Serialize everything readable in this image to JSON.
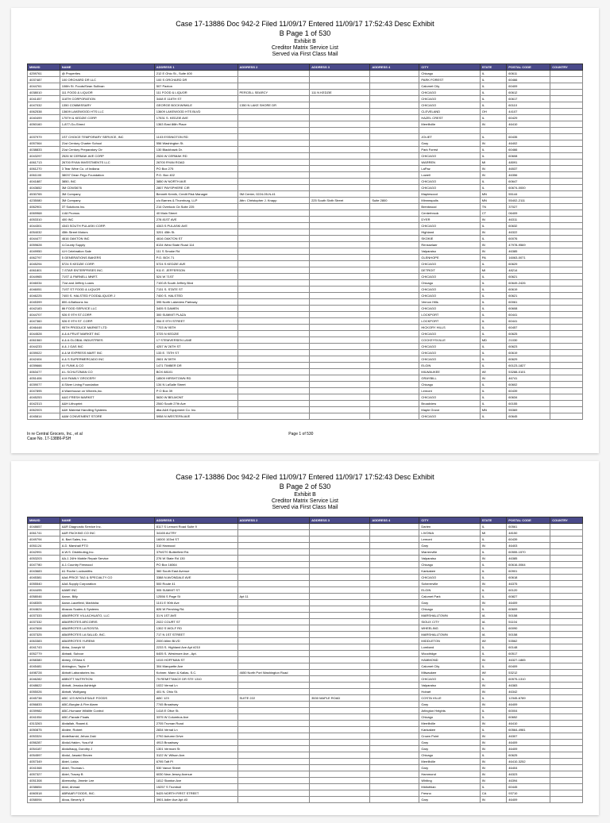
{
  "case_header": "Case 17-13886   Doc 942-2   Filed 11/09/17   Entered 11/09/17 17:52:43   Desc Exhibit",
  "page1_line": "B   Page 1 of 530",
  "page2_line": "B   Page 2 of 530",
  "exhibit_label": "Exhibit B",
  "subtitle1": "Creditor Matrix Service List",
  "subtitle2": "Served via First Class Mail",
  "columns": [
    "MMUID",
    "NAME",
    "ADDRESS 1",
    "ADDRESS 2",
    "ADDRESS 3",
    "ADDRESS 4",
    "CITY",
    "STATE",
    "POSTAL CODE",
    "COUNTRY"
  ],
  "footer_left1": "In re Central Grocers, Inc., et al",
  "footer_left2": "Case No. 17-13886-PSH",
  "footer_center": "Page 1 of 530",
  "rows1": [
    [
      "4259761",
      "@ Properties",
      "212 E Ohio St., Suite 400",
      "",
      "",
      "",
      "Chicago",
      "IL",
      "60611",
      ""
    ],
    [
      "4037487",
      "100 ORCHARD DR LLC",
      "100 S ORCHARD DR",
      "",
      "",
      "",
      "PARK FOREST",
      "IL",
      "60466",
      ""
    ],
    [
      "4044761",
      "106th St. Foods/Sean Sullivan",
      "507 Paxton",
      "",
      "",
      "",
      "Calumet City",
      "IL",
      "60409",
      ""
    ],
    [
      "4038010",
      "111 FOOD & LIQUOR",
      "111 FOOD & LIQUOR",
      "PERCELL SEARCY",
      "111 N KEDZIE",
      "",
      "CHICAGO",
      "IL",
      "60612",
      ""
    ],
    [
      "4041457",
      "118TH CORPORATION",
      "3448 E 118TH ST",
      "",
      "",
      "",
      "CHICAGO",
      "IL",
      "60617",
      ""
    ],
    [
      "4047032",
      "1350 COMMISSARY",
      "GEORGE BOCKWINKLE",
      "1350 N LAKE SHORE DR",
      "",
      "",
      "CHICAGO",
      "IL",
      "60110",
      ""
    ],
    [
      "4062538",
      "13609 LAKEWOOD HTS LLC",
      "13609 LAKEWOOD HTS BLVD",
      "",
      "",
      "",
      "CLEVELAND",
      "OH",
      "44107",
      ""
    ],
    [
      "4040499",
      "175TH & KEDZIE CORP.",
      "17531 S. KEDZIE AVE",
      "",
      "",
      "",
      "HAZEL CREST",
      "IL",
      "60429",
      ""
    ],
    [
      "4050160",
      "1-877-Go-Shred",
      "1363 East 86th Place",
      "",
      "",
      "",
      "Merrillville",
      "IN",
      "46410",
      ""
    ],
    [
      "",
      "",
      "",
      "",
      "",
      "",
      "",
      "",
      "",
      ""
    ],
    [
      "4037979",
      "1ST CHOICE TEMPORARY SERVICE, INC",
      "1103 ESSINGTON RD",
      "",
      "",
      "",
      "JOLIET",
      "IL",
      "60435",
      ""
    ],
    [
      "4057064",
      "21st Century Charter School",
      "556 Washington St.",
      "",
      "",
      "",
      "Gary",
      "IN",
      "46402",
      ""
    ],
    [
      "4038833",
      "21st Century Preparatory Ctr",
      "130 Blackhawk Dr.",
      "",
      "",
      "",
      "Park Forest",
      "IL",
      "60466",
      ""
    ],
    [
      "4043297",
      "2526 W CERMAK AVE CORP",
      "2526 W CERMAK RD",
      "",
      "",
      "",
      "CHICAGO",
      "IL",
      "60608",
      ""
    ],
    [
      "4061713",
      "26700 RYAN INVESTMENTS LLC",
      "26700 RYAN ROAD",
      "",
      "",
      "",
      "WARREN",
      "MI",
      "48091",
      ""
    ],
    [
      "4061270",
      "3 Tear Wine Co. of Indiana",
      "PO Box 275",
      "",
      "",
      "",
      "LaPaz",
      "IN",
      "46537",
      ""
    ],
    [
      "4061100",
      "38037 Dean Frigo Foundation",
      "P.O. Box 402",
      "",
      "",
      "",
      "Lowell",
      "IN",
      "46356",
      ""
    ],
    [
      "4041887",
      "3850, INC",
      "3850 W NORTH AVE",
      "",
      "",
      "",
      "CHICAGO",
      "IL",
      "60647",
      ""
    ],
    [
      "4043652",
      "3M CDW3676",
      "2807 PAYSPHERE CIR",
      "",
      "",
      "",
      "CHICAGO",
      "IL",
      "60674-0000",
      ""
    ],
    [
      "4530765",
      "3M Company",
      "Bennett Krenlk, Credit Risk Manager",
      "3M Center, 0224-05-N-41",
      "",
      "",
      "Maplewood",
      "MN",
      "55144",
      ""
    ],
    [
      "4235080",
      "3M Company",
      "c/o Barnes & Thornburg, LLP",
      "Attn: Christopher J. Knapp",
      "225 South Sixth Street",
      "Suite 2800",
      "Minneapolis",
      "MN",
      "55402-2111",
      ""
    ],
    [
      "4062901",
      "3T Solutions Inc.",
      "214 Overlook Cir.Suite 225",
      "",
      "",
      "",
      "Brentwood",
      "TN",
      "37027",
      ""
    ],
    [
      "4069968",
      "4 All Promos",
      "40 Main Street",
      "",
      "",
      "",
      "Centerbrook",
      "CT",
      "06409",
      ""
    ],
    [
      "4053310",
      "400 INC",
      "278 81ST AVE",
      "",
      "",
      "",
      "DYER",
      "IN",
      "46311",
      ""
    ],
    [
      "4044301",
      "4343 SOUTH PULASKI CORP.",
      "4343 S PULASKI AVE",
      "",
      "",
      "",
      "CHICAGO",
      "IL",
      "60632",
      ""
    ],
    [
      "4054032",
      "45th Street Motors",
      "3201 45th St.",
      "",
      "",
      "",
      "Highland",
      "IN",
      "46322",
      ""
    ],
    [
      "4044477",
      "4616 OAKTON INC",
      "4616 OAKTON ST",
      "",
      "",
      "",
      "SKOKIE",
      "IL",
      "60076",
      ""
    ],
    [
      "4059628",
      "4-County Supply",
      "8134 West State Road 114",
      "",
      "",
      "",
      "Rensselaer",
      "IN",
      "47978-9569",
      ""
    ],
    [
      "4049950",
      "4-H Celebration Sale",
      "111 S Smoke Rd",
      "",
      "",
      "",
      "Valparaiso",
      "IN",
      "46385",
      ""
    ],
    [
      "4062797",
      "5 GENERATIONS BAKERS",
      "P.O. BOX 71",
      "",
      "",
      "",
      "GLENHOPE",
      "PA",
      "16063-0071",
      ""
    ],
    [
      "4045294",
      "5724 S KEDZIE CORP.",
      "5724 S KEDZIE AVE",
      "",
      "",
      "",
      "CHICAGO",
      "IL",
      "60629",
      ""
    ],
    [
      "4061801",
      "7-STAR ENTERPRISES INC.",
      "911 E. JEFFERSON",
      "",
      "",
      "",
      "DETROIT",
      "MI",
      "48214",
      ""
    ],
    [
      "4044965",
      "71ST & PARNELL MNRT.",
      "524 W 71ST",
      "",
      "",
      "",
      "CHICAGO",
      "IL",
      "60621",
      ""
    ],
    [
      "4046034",
      "71st and Jeffery Loans",
      "7100-B South Jeffery Blvd",
      "",
      "",
      "",
      "Chicago",
      "IL",
      "60649-2426",
      ""
    ],
    [
      "4046051",
      "71ST ST FOOD & LIQUOR",
      "7131 S. STATE ST",
      "",
      "",
      "",
      "CHICAGO",
      "IL",
      "60619",
      ""
    ],
    [
      "4046225",
      "7400 S. HALSTED FOOD&LIQUOR J",
      "7400 S. HALSTED",
      "",
      "",
      "",
      "CHICAGO",
      "IL",
      "60621",
      ""
    ],
    [
      "4045399",
      "800-4-Balloons Inc",
      "395 North Lakeview Parkway",
      "",
      "",
      "",
      "Vernon Hills",
      "IL",
      "60061",
      ""
    ],
    [
      "4042183",
      "86 FOOD SERVICE LLC",
      "3405 S DAMEN",
      "",
      "",
      "",
      "CHICAGO",
      "IL",
      "60608",
      ""
    ],
    [
      "4044707",
      "926 E 9TH ST.CORP.",
      "300 SUMMIT PLAZA",
      "",
      "",
      "",
      "LOCKPORT",
      "IL",
      "60441",
      ""
    ],
    [
      "4047360",
      "926 E 9TH ST. CORP.",
      "954 E 9TH STREET",
      "",
      "",
      "",
      "LOCKPORT",
      "IL",
      "60441",
      ""
    ],
    [
      "4046448",
      "95TH PRODUCE MARKET LTD",
      "7703 W 95TH",
      "",
      "",
      "",
      "HICKORY HILLS",
      "IL",
      "60457",
      ""
    ],
    [
      "4044528",
      "A & A FRUIT MARKET INC",
      "3725 N KEDZIE",
      "",
      "",
      "",
      "CHICAGO",
      "IL",
      "60625",
      ""
    ],
    [
      "4061560",
      "A & A GLOBAL INDUSTRIES",
      "17 STEMVERSEN LANE",
      "",
      "",
      "",
      "COCKEYSVILLE",
      "MD",
      "21030",
      ""
    ],
    [
      "4044233",
      "A & J GAS INC",
      "4257 W 26TH ST",
      "",
      "",
      "",
      "CHICAGO",
      "IL",
      "60623",
      ""
    ],
    [
      "4039022",
      "A & M EXPRESS MART INC",
      "133 E. 75TH ST",
      "",
      "",
      "",
      "CHICAGO",
      "IL",
      "60619",
      ""
    ],
    [
      "4042404",
      "A & S SUPERMERCADO INC",
      "2601 W 59TH",
      "",
      "",
      "",
      "CHICAGO",
      "IL",
      "60629",
      ""
    ],
    [
      "4039666",
      "A I FUNK & CO",
      "1471 TIMBER DR",
      "",
      "",
      "",
      "ELGIN",
      "IL",
      "60123-1827",
      ""
    ],
    [
      "4063477",
      "A L SCHUTZMAN CO",
      "BOX 88101",
      "",
      "",
      "",
      "MILWAUKEE",
      "WI",
      "53288-0101",
      ""
    ],
    [
      "4051406",
      "A M FAMILY GROCERY",
      "18509 HIRSHTOWN RD",
      "",
      "",
      "",
      "GRAYBILL",
      "IN",
      "46741",
      ""
    ],
    [
      "4039077",
      "A Silver Lining Foundation",
      "134 N LaSalle Street",
      "",
      "",
      "",
      "Chicago",
      "IL",
      "60602",
      ""
    ],
    [
      "4047895",
      "A Warehouse on Wheels,Inc.",
      "P O Box 39",
      "",
      "",
      "",
      "Lemont",
      "IL",
      "60439",
      ""
    ],
    [
      "4045253",
      "A&G FRESH MARKET",
      "5630 W BELMONT",
      "",
      "",
      "",
      "CHICAGO",
      "IL",
      "60634",
      ""
    ],
    [
      "4042313",
      "A&H Lithoprint",
      "2540 South 27th Ave",
      "",
      "",
      "",
      "Broadview",
      "IL",
      "60155",
      ""
    ],
    [
      "4062003",
      "A&K Material Handling Systems",
      "dba A&K Equipment Co. Inc.",
      "",
      "",
      "",
      "Maple Grove",
      "MN",
      "55369",
      ""
    ],
    [
      "4045814",
      "A&M CONVENIENT STORE",
      "5958 N WESTERN AVE",
      "",
      "",
      "",
      "CHICAGO",
      "IL",
      "60645",
      ""
    ]
  ],
  "rows2": [
    [
      "4048657",
      "A&R Diagnostic Service Inc.",
      "8117 S Lemont Road Suite 9",
      "",
      "",
      "",
      "Darien",
      "IL",
      "60561",
      ""
    ],
    [
      "4061741",
      "A&R PACKING CO INC",
      "34165 AUTRY",
      "",
      "",
      "",
      "LIVONIA",
      "MI",
      "48150",
      ""
    ],
    [
      "4049794",
      "A. Bart Sales, Inc.",
      "16000 103rd ST",
      "",
      "",
      "",
      "Lemont",
      "IL",
      "60439",
      ""
    ],
    [
      "4051124",
      "A.D. Marshall PTO",
      "310 Harwood",
      "",
      "",
      "",
      "Gary",
      "IN",
      "46403",
      ""
    ],
    [
      "4042991",
      "A.W.S. Distributing,Inc.",
      "37W270 Butterfield Rd.",
      "",
      "",
      "",
      "Warrenville",
      "IL",
      "60555-1570",
      ""
    ],
    [
      "4053203",
      "AA-1 24Hr Mobile Repair Service",
      "276 W State Rd 130",
      "",
      "",
      "",
      "Valparaiso",
      "IN",
      "46385",
      ""
    ],
    [
      "4047780",
      "A-1 Country Firewood",
      "PO Box 16064",
      "",
      "",
      "",
      "Chicago",
      "IL",
      "60616-0064",
      ""
    ],
    [
      "4043683",
      "A1 Roche Locksmiths",
      "360 South East Avenue",
      "",
      "",
      "",
      "Kankakee",
      "IL",
      "60901",
      ""
    ],
    [
      "4045381",
      "AAA PRICE TAG & SPECIALTY CO",
      "3388 N AVONDALE AVE",
      "",
      "",
      "",
      "CHICAGO",
      "IL",
      "60618",
      ""
    ],
    [
      "4055540",
      "AAA Supply Corporation",
      "500 Route 41",
      "",
      "",
      "",
      "Schererville",
      "IN",
      "46375",
      ""
    ],
    [
      "4044495",
      "AAME INC",
      "305 SUMMIT ST",
      "",
      "",
      "",
      "ELGIN",
      "IL",
      "60120",
      ""
    ],
    [
      "4058046",
      "Aaron, Billy",
      "12556 S Page St",
      "Apt 11",
      "",
      "",
      "Calumet Park",
      "IL",
      "60827",
      ""
    ],
    [
      "4048305",
      "Aaron-Lacefield, Markisha",
      "1101 E 90th Ave",
      "",
      "",
      "",
      "Gary",
      "IN",
      "46409",
      ""
    ],
    [
      "4044624",
      "Abacus Scales & Systems",
      "826 W Pershing Rd.",
      "",
      "",
      "",
      "Chicago",
      "IL",
      "60609",
      ""
    ],
    [
      "4037333",
      "ABARROTE VILLACHUATO, LLC",
      "31 N 1ST AVE",
      "",
      "",
      "",
      "MARSHALLTOWN",
      "IA",
      "50158",
      ""
    ],
    [
      "4037332",
      "ABARROTES ARCOIRIS",
      "2022 COURT ST",
      "",
      "",
      "",
      "SIOUX CITY",
      "IA",
      "51104",
      ""
    ],
    [
      "4047608",
      "ABARROTES LA ROSITA",
      "1302 S WOLF RD",
      "",
      "",
      "",
      "WHEELING",
      "IL",
      "60090",
      ""
    ],
    [
      "4037325",
      "ABARROTES LA SALUD, INC.",
      "717 N 1ST STREET",
      "",
      "",
      "",
      "MARSHALLTOWN",
      "IA",
      "50158",
      ""
    ],
    [
      "4063383",
      "ABARROTES YUREMI",
      "2000 Allen BLVD",
      "",
      "",
      "",
      "MIDDLETON",
      "WI",
      "53562",
      ""
    ],
    [
      "4041743",
      "Abba, Joseph W",
      "2233 S. Highland Ave Apt #210",
      "",
      "",
      "",
      "Lombard",
      "IL",
      "60148",
      ""
    ],
    [
      "4052779",
      "Abbadi, Suboor",
      "6405 S. Westmore Ave., Apt.",
      "",
      "",
      "",
      "Woodridge",
      "IL",
      "60517",
      ""
    ],
    [
      "4058380",
      "Abbey, OShea K",
      "1015 HOFFMAN ST",
      "",
      "",
      "",
      "HAMMOND",
      "IN",
      "46327-1865",
      ""
    ],
    [
      "4045481",
      "Abbington, Taylor P",
      "304 Marquette Ave",
      "",
      "",
      "",
      "Calumet City",
      "IL",
      "60409",
      ""
    ],
    [
      "4498728",
      "Abbott Laboratories Inc.",
      "Kohner, Mann & Kailas, S.C.",
      "4650 North Port Washington Road",
      "",
      "",
      "Milwaukee",
      "WI",
      "53212",
      ""
    ],
    [
      "4046282",
      "ABBOTT NUTRITION",
      "75 REMITTANCE DR STE 1310",
      "",
      "",
      "",
      "CHICAGO",
      "IL",
      "60575-1310",
      ""
    ],
    [
      "4048622",
      "Abbott, Jessica Ashleigh",
      "1022 Vernal Ln",
      "",
      "",
      "",
      "Valparaiso",
      "IN",
      "46383",
      ""
    ],
    [
      "4055026",
      "Abbott, Wolfgang",
      "401 N. Ohio St.",
      "",
      "",
      "",
      "Hobart",
      "IN",
      "46342",
      ""
    ],
    [
      "4045738",
      "ABC 123 WHOLESALE FOODS",
      "ABC 123",
      "SUITE 222",
      "3530 MAPLE ROAD",
      "",
      "COSTA VILLE",
      "IL",
      "12345-6789",
      ""
    ],
    [
      "4056833",
      "ABC-Burglar & Fire Alarm",
      "7745 Broadway",
      "",
      "",
      "",
      "Gary",
      "IN",
      "46409",
      ""
    ],
    [
      "4039982",
      "ABC-Humane Wildlife Control",
      "1418 E Olive St.",
      "",
      "",
      "",
      "Arlington Heights",
      "IL",
      "60004",
      ""
    ],
    [
      "4041054",
      "ABC-Parade Floats",
      "3375 W Columbus Ave",
      "",
      "",
      "",
      "Chicago",
      "IL",
      "60652",
      ""
    ],
    [
      "4313263",
      "Abdallah, Raami A",
      "2705 Truman Road",
      "",
      "",
      "",
      "Merrillville",
      "IN",
      "46410",
      ""
    ],
    [
      "4050875",
      "Abdee, Robert",
      "2834 Vernal Ln",
      "",
      "",
      "",
      "Kankakee",
      "IL",
      "60564-4981",
      ""
    ],
    [
      "4053324",
      "Abdelhamid, Jehan Zaki",
      "2792 Autumn Drive",
      "",
      "",
      "",
      "Crown Point",
      "IN",
      "46307",
      ""
    ],
    [
      "4056287",
      "Abdul-Hakim, Yusuf M",
      "4913 Broadway",
      "",
      "",
      "",
      "Gary",
      "IN",
      "46409",
      ""
    ],
    [
      "4054187",
      "Abdulhaqq, Dorothy J",
      "1301 Vermont St",
      "",
      "",
      "",
      "Gary",
      "IN",
      "46409",
      ""
    ],
    [
      "4054597",
      "Abdul, Jawaid Steven",
      "3122 W. Wilson Ave.",
      "",
      "",
      "",
      "Chicago",
      "IL",
      "60625",
      ""
    ],
    [
      "4057349",
      "Abiel, Loida",
      "6795 Taft Pl",
      "",
      "",
      "",
      "Merrillville",
      "IN",
      "46410-3252",
      ""
    ],
    [
      "4041068",
      "Abiel, Thomas L",
      "530 Vance Street",
      "",
      "",
      "",
      "Gary",
      "IN",
      "46404",
      ""
    ],
    [
      "4057327",
      "Abiel, Tracey B",
      "6030 New Jersey Avenue",
      "",
      "",
      "",
      "Hammond",
      "IN",
      "46323",
      ""
    ],
    [
      "4051308",
      "Abernathy, Jimmie Lee",
      "1812 Stanton Ave",
      "",
      "",
      "",
      "Whiting",
      "IN",
      "46394",
      ""
    ],
    [
      "4038654",
      "Abid, Ahmad",
      "15257 S Trumbull",
      "",
      "",
      "",
      "Midlothian",
      "IL",
      "60445",
      ""
    ],
    [
      "4060518",
      "ABRAAR FOODS, INC.",
      "5425 NORTH FIRST STREET",
      "",
      "",
      "",
      "Fresno",
      "CA",
      "93710",
      ""
    ],
    [
      "4058094",
      "Aboa, Beverly E",
      "3901 Adler Ave Apt #3",
      "",
      "",
      "",
      "Gary",
      "IN",
      "46409",
      ""
    ]
  ]
}
